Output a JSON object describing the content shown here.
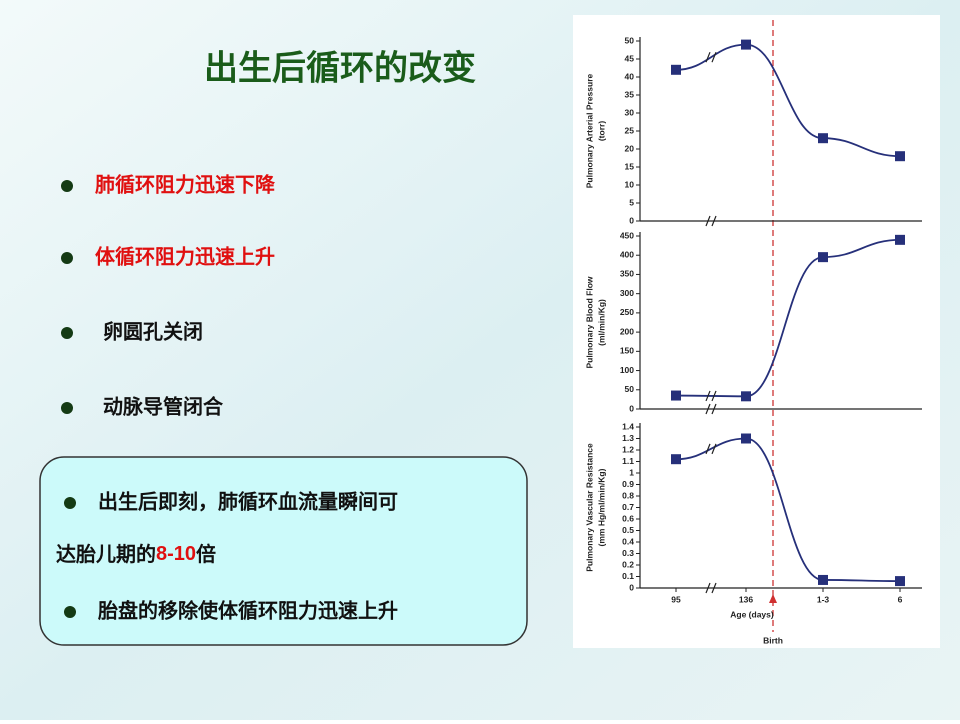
{
  "title": "出生后循环的改变",
  "bullets": [
    "肺循环阻力迅速下降",
    "体循环阻力迅速上升",
    "卵圆孔关闭",
    "动脉导管闭合"
  ],
  "box": {
    "items": [
      {
        "line1": "出生后即刻，肺循环血流量瞬间可",
        "line2": "达胎儿期的",
        "emphasis": "8-10",
        "line2_end": "倍"
      },
      {
        "line1": "胎盘的移除使体循环阻力迅速上升"
      }
    ]
  },
  "chart_data": [
    {
      "type": "line",
      "ylabel": [
        "Pulmonary   Arterial   Pressure",
        "(torr)"
      ],
      "color": "#26307a",
      "values": [
        42,
        49,
        23,
        18
      ],
      "ylim": [
        0,
        50
      ],
      "yticks": [
        0,
        5,
        10,
        15,
        20,
        25,
        30,
        35,
        40,
        45,
        50
      ]
    },
    {
      "type": "line",
      "ylabel": [
        "Pulmonary Blood Flow",
        "(ml/min/Kg)"
      ],
      "color": "#26307a",
      "values": [
        35,
        33,
        395,
        440
      ],
      "ylim": [
        0,
        450
      ],
      "yticks": [
        0,
        50,
        100,
        150,
        200,
        250,
        300,
        350,
        400,
        450
      ]
    },
    {
      "type": "line",
      "ylabel": [
        "Pulmonary Vascular Resistance",
        "(mm Hg/ml/min/Kg)"
      ],
      "color": "#26307a",
      "categories": [
        "95",
        "136",
        "1-3",
        "6"
      ],
      "xlabel": "Age (days)",
      "annotation": "Birth",
      "values": [
        1.12,
        1.3,
        0.07,
        0.06
      ],
      "ylim": [
        0,
        1.4
      ],
      "yticks": [
        0,
        0.1,
        0.2,
        0.3,
        0.4,
        0.5,
        0.6,
        0.7,
        0.8,
        0.9,
        1,
        1.1,
        1.2,
        1.3,
        1.4
      ]
    }
  ]
}
